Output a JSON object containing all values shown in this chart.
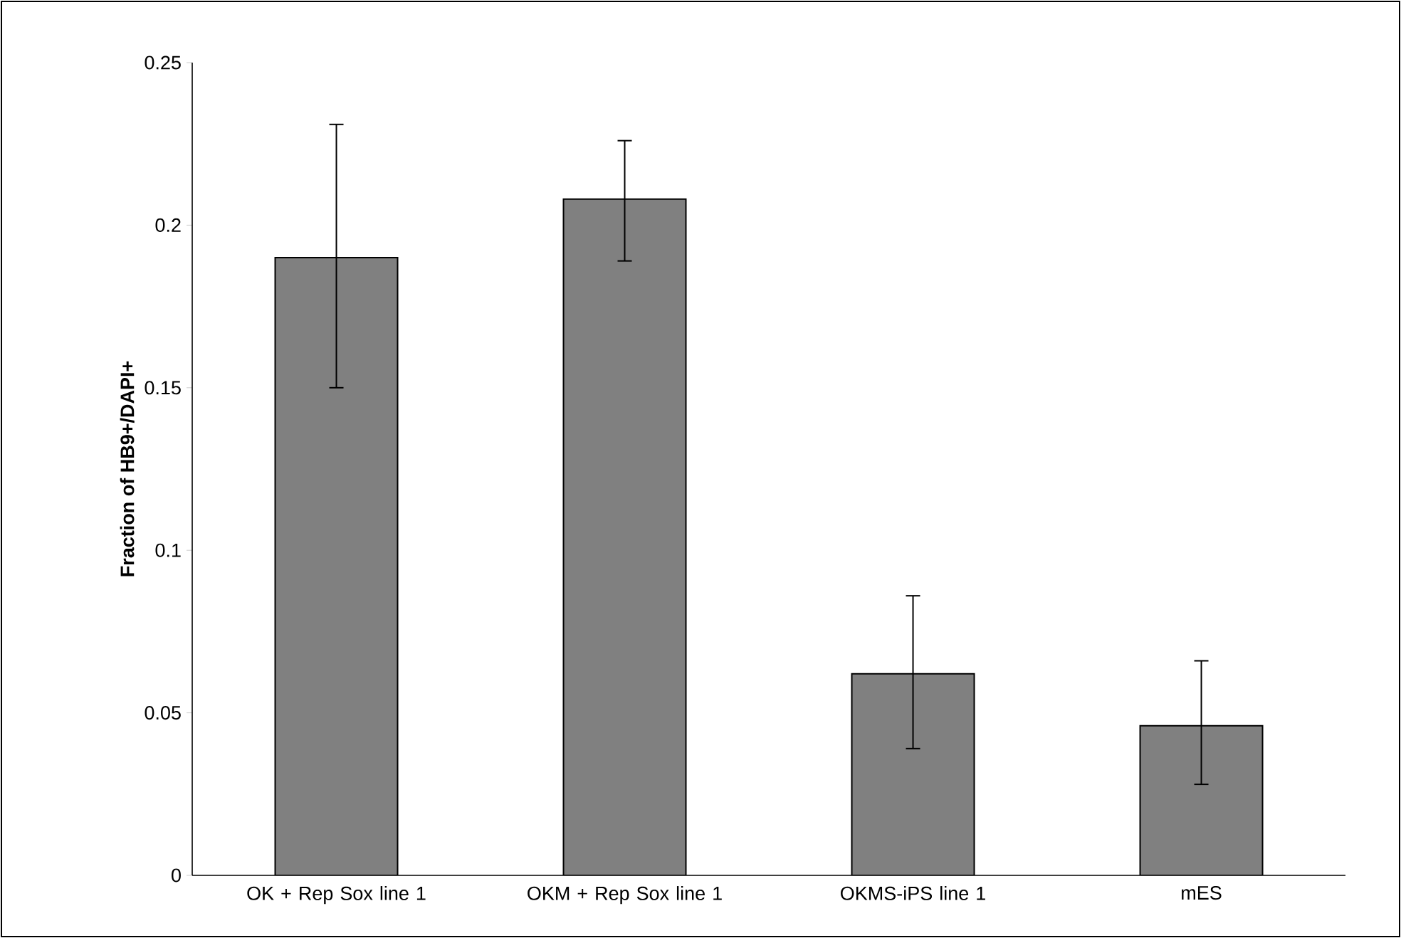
{
  "chart_data": {
    "type": "bar",
    "ylabel": "Fraction of HB9+/DAPI+",
    "categories": [
      "OK + Rep Sox line 1",
      "OKM + Rep Sox line 1",
      "OKMS-iPS line 1",
      "mES"
    ],
    "values": [
      0.19,
      0.208,
      0.062,
      0.046
    ],
    "errors": [
      [
        0.15,
        0.231
      ],
      [
        0.189,
        0.226
      ],
      [
        0.039,
        0.086
      ],
      [
        0.028,
        0.066
      ]
    ],
    "color": "#808080",
    "ylim": [
      0,
      0.25
    ],
    "yticks": [
      0,
      0.05,
      0.1,
      0.15,
      0.2,
      0.25
    ]
  }
}
